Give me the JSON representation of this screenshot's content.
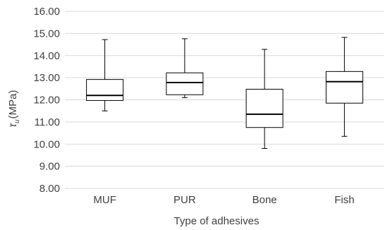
{
  "chart_data": {
    "type": "box",
    "xlabel": "Type of adhesives",
    "ylabel_symbol": "τ",
    "ylabel_subscript": "u",
    "ylabel_unit": "(MPa)",
    "ylim": [
      8.0,
      16.0
    ],
    "y_ticks": [
      "8.00",
      "9.00",
      "10.00",
      "11.00",
      "12.00",
      "13.00",
      "14.00",
      "15.00",
      "16.00"
    ],
    "grid": true,
    "categories": [
      "MUF",
      "PUR",
      "Bone",
      "Fish"
    ],
    "boxes": [
      {
        "category": "MUF",
        "min": 11.5,
        "q1": 11.97,
        "median": 12.2,
        "q3": 12.92,
        "max": 14.72
      },
      {
        "category": "PUR",
        "min": 12.1,
        "q1": 12.23,
        "median": 12.78,
        "q3": 13.22,
        "max": 14.76
      },
      {
        "category": "Bone",
        "min": 9.8,
        "q1": 10.75,
        "median": 11.35,
        "q3": 12.48,
        "max": 14.28
      },
      {
        "category": "Fish",
        "min": 10.35,
        "q1": 11.85,
        "median": 12.82,
        "q3": 13.28,
        "max": 14.82
      }
    ],
    "colors": {
      "box_stroke": "#000000",
      "grid": "#d9d9d9",
      "text": "#404040"
    }
  }
}
